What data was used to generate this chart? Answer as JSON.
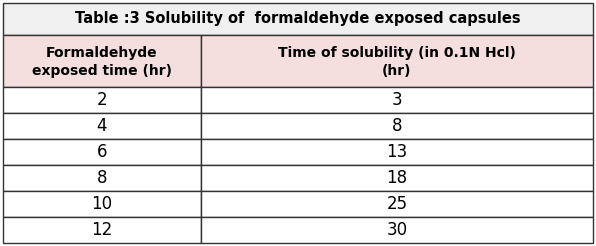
{
  "title": "Table :3 Solubility of  formaldehyde exposed capsules",
  "col1_header_line1": "Formaldehyde",
  "col1_header_line2": "exposed time (hr)",
  "col2_header_line1": "Time of solubility (in 0.1N Hcl)",
  "col2_header_line2": "(hr)",
  "col1_data": [
    "2",
    "4",
    "6",
    "8",
    "10",
    "12"
  ],
  "col2_data": [
    "3",
    "8",
    "13",
    "18",
    "25",
    "30"
  ],
  "title_bg": "#f0f0f0",
  "header_bg": "#f5dede",
  "data_bg": "#ffffff",
  "border_color": "#333333",
  "title_fontsize": 10.5,
  "header_fontsize": 10,
  "data_fontsize": 12
}
